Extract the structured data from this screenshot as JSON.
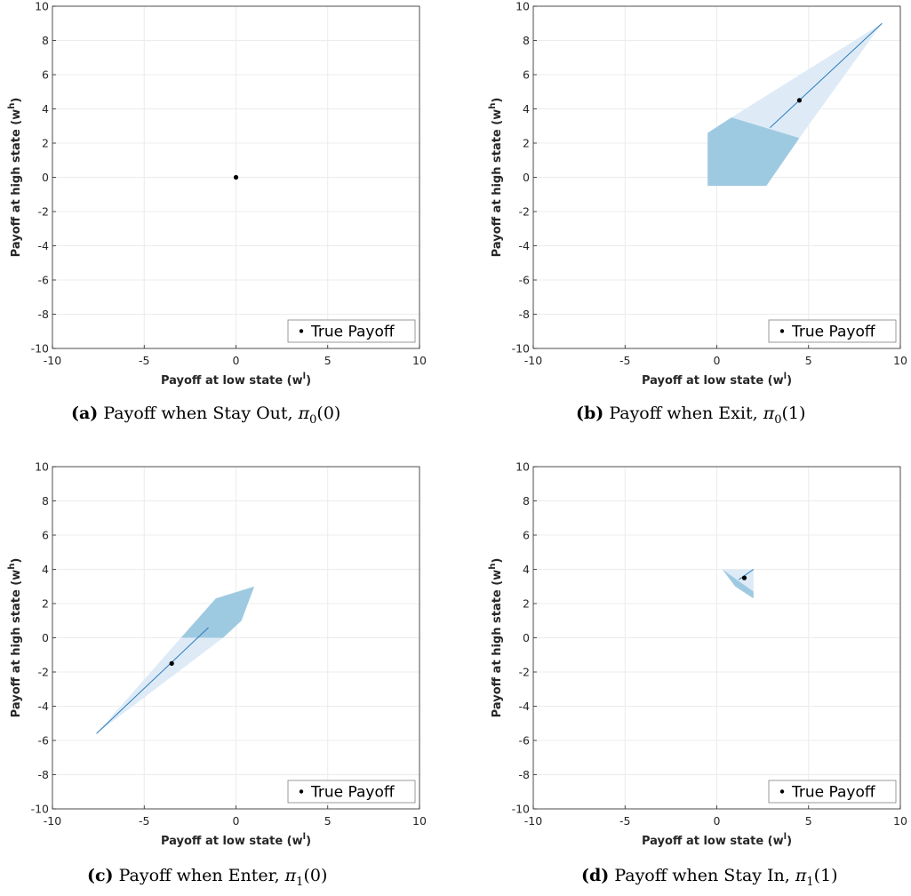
{
  "colors": {
    "dark_blue": "#9ecae1",
    "light_blue": "#deebf7",
    "line": "#2b7bba",
    "point": "#000000",
    "grid": "#ececec",
    "axis": "#262626"
  },
  "chart_data": [
    {
      "type": "scatter",
      "caption_tag": "(a)",
      "caption_text": "Payoff when Stay Out, ",
      "caption_pi": "π",
      "caption_sub": "0",
      "caption_arg": "(0)",
      "xlabel": "Payoff at low state (w",
      "xlabel_sup": "l",
      "xlabel_end": ")",
      "ylabel": "Payoff at high state (w",
      "ylabel_sup": "h",
      "ylabel_end": ")",
      "xlim": [
        -10,
        10
      ],
      "ylim": [
        -10,
        10
      ],
      "xticks": [
        "-10",
        "-5",
        "0",
        "5",
        "10"
      ],
      "yticks": [
        "-10",
        "-8",
        "-6",
        "-4",
        "-2",
        "0",
        "2",
        "4",
        "6",
        "8",
        "10"
      ],
      "grid": true,
      "legend": {
        "label": "True Payoff",
        "position": "bottom-right"
      },
      "true_payoff": [
        0,
        0
      ],
      "light_region": [],
      "dark_region": [],
      "line": []
    },
    {
      "type": "scatter",
      "caption_tag": "(b)",
      "caption_text": "Payoff when Exit, ",
      "caption_pi": "π",
      "caption_sub": "0",
      "caption_arg": "(1)",
      "xlabel": "Payoff at low state (w",
      "xlabel_sup": "l",
      "xlabel_end": ")",
      "ylabel": "Payoff at high state (w",
      "ylabel_sup": "h",
      "ylabel_end": ")",
      "xlim": [
        -10,
        10
      ],
      "ylim": [
        -10,
        10
      ],
      "xticks": [
        "-10",
        "-5",
        "0",
        "5",
        "10"
      ],
      "yticks": [
        "-10",
        "-8",
        "-6",
        "-4",
        "-2",
        "0",
        "2",
        "4",
        "6",
        "8",
        "10"
      ],
      "grid": true,
      "legend": {
        "label": "True Payoff",
        "position": "bottom-right"
      },
      "true_payoff": [
        4.5,
        4.5
      ],
      "light_region": [
        [
          0.8,
          3.5
        ],
        [
          9,
          9
        ],
        [
          4.5,
          2.3
        ]
      ],
      "dark_region": [
        [
          -0.5,
          2.6
        ],
        [
          0.8,
          3.5
        ],
        [
          4.5,
          2.3
        ],
        [
          2.7,
          -0.5
        ],
        [
          -0.5,
          -0.5
        ]
      ],
      "line": [
        [
          2.9,
          2.9
        ],
        [
          9,
          9
        ]
      ]
    },
    {
      "type": "scatter",
      "caption_tag": "(c)",
      "caption_text": "Payoff when Enter, ",
      "caption_pi": "π",
      "caption_sub": "1",
      "caption_arg": "(0)",
      "xlabel": "Payoff at low state (w",
      "xlabel_sup": "l",
      "xlabel_end": ")",
      "ylabel": "Payoff at high state (w",
      "ylabel_sup": "h",
      "ylabel_end": ")",
      "xlim": [
        -10,
        10
      ],
      "ylim": [
        -10,
        10
      ],
      "xticks": [
        "-10",
        "-5",
        "0",
        "5",
        "10"
      ],
      "yticks": [
        "-10",
        "-8",
        "-6",
        "-4",
        "-2",
        "0",
        "2",
        "4",
        "6",
        "8",
        "10"
      ],
      "grid": true,
      "legend": {
        "label": "True Payoff",
        "position": "bottom-right"
      },
      "true_payoff": [
        -3.5,
        -1.5
      ],
      "light_region": [
        [
          -7.6,
          -5.6
        ],
        [
          -3,
          0
        ],
        [
          -0.7,
          0
        ]
      ],
      "dark_region": [
        [
          -3,
          0
        ],
        [
          -1.1,
          2.3
        ],
        [
          1,
          3
        ],
        [
          0.3,
          1
        ],
        [
          -0.7,
          0
        ]
      ],
      "line": [
        [
          -7.6,
          -5.6
        ],
        [
          -1.5,
          0.6
        ]
      ]
    },
    {
      "type": "scatter",
      "caption_tag": "(d)",
      "caption_text": "Payoff when Stay In, ",
      "caption_pi": "π",
      "caption_sub": "1",
      "caption_arg": "(1)",
      "xlabel": "Payoff at low state (w",
      "xlabel_sup": "l",
      "xlabel_end": ")",
      "ylabel": "Payoff at high state (w",
      "ylabel_sup": "h",
      "ylabel_end": ")",
      "xlim": [
        -10,
        10
      ],
      "ylim": [
        -10,
        10
      ],
      "xticks": [
        "-10",
        "-5",
        "0",
        "5",
        "10"
      ],
      "yticks": [
        "-10",
        "-8",
        "-6",
        "-4",
        "-2",
        "0",
        "2",
        "4",
        "6",
        "8",
        "10"
      ],
      "grid": true,
      "legend": {
        "label": "True Payoff",
        "position": "bottom-right"
      },
      "true_payoff": [
        1.5,
        3.5
      ],
      "light_region": [
        [
          0.3,
          4
        ],
        [
          2.0,
          4
        ],
        [
          2.0,
          2.7
        ]
      ],
      "dark_region": [
        [
          0.3,
          4
        ],
        [
          2.0,
          2.7
        ],
        [
          2.0,
          2.3
        ],
        [
          1.0,
          3.0
        ]
      ],
      "line": [
        [
          1.2,
          3.4
        ],
        [
          2.0,
          4.0
        ]
      ]
    }
  ]
}
